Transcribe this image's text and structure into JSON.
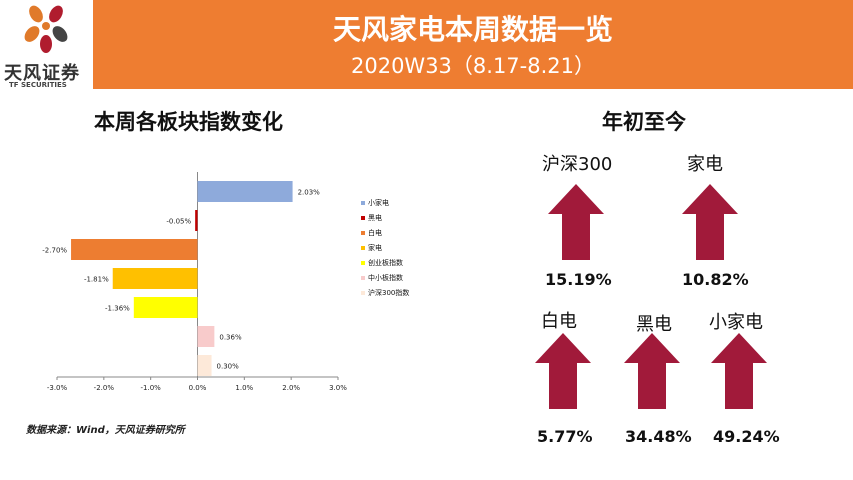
{
  "header": {
    "title": "天风家电本周数据一览",
    "subtitle": "2020W33（8.17-8.21）",
    "logo_name": "天风证券",
    "logo_en": "TF SECURITIES"
  },
  "left_section": {
    "title": "本周各板块指数变化"
  },
  "right_section": {
    "title": "年初至今"
  },
  "source_note": "数据来源：Wind，天风证券研究所",
  "colors": {
    "header": "#ee7d31",
    "arrow": "#a11a3a"
  },
  "chart_data": {
    "type": "bar",
    "orientation": "horizontal",
    "categories": [
      "小家电",
      "黑电",
      "白电",
      "家电",
      "创业板指数",
      "中小板指数",
      "沪深300指数"
    ],
    "values": [
      2.03,
      -0.05,
      -2.7,
      -1.81,
      -1.36,
      0.36,
      0.3
    ],
    "value_labels": [
      "2.03%",
      "-0.05%",
      "-2.70%",
      "-1.81%",
      "-1.36%",
      "0.36%",
      "0.30%"
    ],
    "colors": [
      "#8eaadb",
      "#c00000",
      "#ed7d31",
      "#ffc000",
      "#ffff00",
      "#f8cbcb",
      "#fde9d9"
    ],
    "xlim": [
      -3.0,
      3.0
    ],
    "xticks": [
      -3.0,
      -2.0,
      -1.0,
      0.0,
      1.0,
      2.0,
      3.0
    ],
    "xtick_labels": [
      "-3.0%",
      "-2.0%",
      "-1.0%",
      "0.0%",
      "1.0%",
      "2.0%",
      "3.0%"
    ],
    "grid": false,
    "legend_position": "right"
  },
  "ytd": [
    {
      "label": "沪深300",
      "value": "15.19%"
    },
    {
      "label": "家电",
      "value": "10.82%"
    },
    {
      "label": "白电",
      "value": "5.77%"
    },
    {
      "label": "黑电",
      "value": "34.48%"
    },
    {
      "label": "小家电",
      "value": "49.24%"
    }
  ]
}
